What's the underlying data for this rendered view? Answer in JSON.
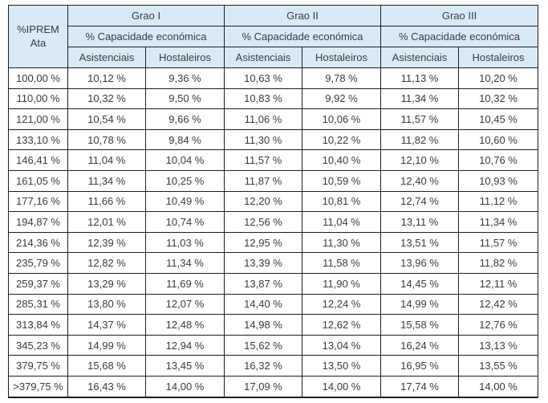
{
  "colors": {
    "header_bg": "#d9eaf7",
    "border": "#1f1f1f",
    "text": "#3a3a3a",
    "cell_bg": "#ffffff"
  },
  "table": {
    "corner_line1": "%IPREM",
    "corner_line2": "Ata",
    "groups": [
      {
        "label": "Grao I",
        "subheader": "% Capacidade económica"
      },
      {
        "label": "Grao II",
        "subheader": "% Capacidade económica"
      },
      {
        "label": "Grao III",
        "subheader": "% Capacidade económica"
      }
    ],
    "column_headers": [
      "Asistenciais",
      "Hostaleiros",
      "Asistenciais",
      "Hostaleiros",
      "Asistenciais",
      "Hostaleiros"
    ],
    "rows": [
      [
        "100,00 %",
        "10,12 %",
        "9,36 %",
        "10,63 %",
        "9,78 %",
        "11,13 %",
        "10,20 %"
      ],
      [
        "110,00 %",
        "10,32 %",
        "9,50 %",
        "10,83 %",
        "9,92 %",
        "11,34 %",
        "10,32 %"
      ],
      [
        "121,00 %",
        "10,54 %",
        "9,66 %",
        "11,06 %",
        "10,06 %",
        "11,57 %",
        "10,45 %"
      ],
      [
        "133,10 %",
        "10,78 %",
        "9,84 %",
        "11,30 %",
        "10,22 %",
        "11,82 %",
        "10,60 %"
      ],
      [
        "146,41 %",
        "11,04 %",
        "10,04 %",
        "11,57 %",
        "10,40 %",
        "12,10 %",
        "10,76 %"
      ],
      [
        "161,05 %",
        "11,34 %",
        "10,25 %",
        "11,87 %",
        "10,59 %",
        "12,40 %",
        "10,93 %"
      ],
      [
        "177,16 %",
        "11,66 %",
        "10,49 %",
        "12,20 %",
        "10,81 %",
        "12,74 %",
        "11,12 %"
      ],
      [
        "194,87 %",
        "12,01 %",
        "10,74 %",
        "12,56 %",
        "11,04 %",
        "13,11 %",
        "11,34 %"
      ],
      [
        "214,36 %",
        "12,39 %",
        "11,03 %",
        "12,95 %",
        "11,30 %",
        "13,51 %",
        "11,57 %"
      ],
      [
        "235,79 %",
        "12,82 %",
        "11,34 %",
        "13,39 %",
        "11,58 %",
        "13,96 %",
        "11,82 %"
      ],
      [
        "259,37 %",
        "13,29 %",
        "11,69 %",
        "13,87 %",
        "11,90 %",
        "14,45 %",
        "12,11 %"
      ],
      [
        "285,31 %",
        "13,80 %",
        "12,07 %",
        "14,40 %",
        "12,24 %",
        "14,99 %",
        "12,42 %"
      ],
      [
        "313,84 %",
        "14,37 %",
        "12,48 %",
        "14,98 %",
        "12,62 %",
        "15,58 %",
        "12,76 %"
      ],
      [
        "345,23 %",
        "14,99 %",
        "12,94 %",
        "15,62 %",
        "13,04 %",
        "16,24 %",
        "13,13 %"
      ],
      [
        "379,75 %",
        "15,68 %",
        "13,45 %",
        "16,32 %",
        "13,50 %",
        "16,95 %",
        "13,55 %"
      ],
      [
        ">379,75 %",
        "16,43 %",
        "14,00 %",
        "17,09 %",
        "14,00 %",
        "17,74 %",
        "14,00 %"
      ]
    ]
  }
}
